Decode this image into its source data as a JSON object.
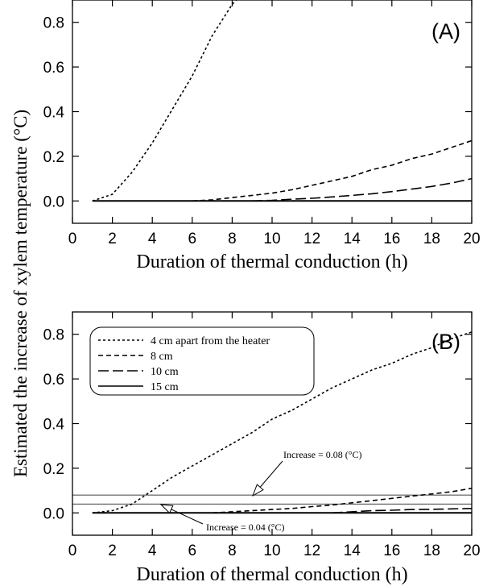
{
  "ylabel": "Estimated the increase of xylem temperature (°C)",
  "chart_data": [
    {
      "type": "line",
      "panel": "(A)",
      "xlabel": "Duration of thermal conduction (h)",
      "xlim": [
        0,
        20
      ],
      "ylim": [
        -0.1,
        0.9
      ],
      "xticks": [
        "0",
        "2",
        "4",
        "6",
        "8",
        "10",
        "12",
        "14",
        "16",
        "18",
        "20"
      ],
      "yticks": [
        "0.0",
        "0.2",
        "0.4",
        "0.6",
        "0.8"
      ],
      "series": [
        {
          "style": "dot",
          "x": [
            1,
            2,
            3,
            4,
            5,
            6,
            7,
            8,
            8.2
          ],
          "y": [
            0,
            0.03,
            0.13,
            0.26,
            0.41,
            0.56,
            0.74,
            0.88,
            0.9
          ]
        },
        {
          "style": "dash",
          "x": [
            6,
            7,
            8,
            9,
            10,
            11,
            12,
            13,
            14,
            15,
            16,
            17,
            18,
            19,
            20
          ],
          "y": [
            0,
            0.005,
            0.015,
            0.025,
            0.035,
            0.05,
            0.07,
            0.09,
            0.11,
            0.14,
            0.16,
            0.19,
            0.21,
            0.24,
            0.27
          ]
        },
        {
          "style": "longdash",
          "x": [
            9,
            10,
            11,
            12,
            13,
            14,
            15,
            16,
            17,
            18,
            19,
            20
          ],
          "y": [
            0,
            0.003,
            0.008,
            0.012,
            0.018,
            0.025,
            0.032,
            0.042,
            0.053,
            0.065,
            0.08,
            0.1
          ]
        },
        {
          "style": "solid",
          "x": [
            1,
            20
          ],
          "y": [
            0,
            0
          ]
        }
      ]
    },
    {
      "type": "line",
      "panel": "(B)",
      "xlabel": "Duration of thermal conduction (h)",
      "xlim": [
        0,
        20
      ],
      "ylim": [
        -0.1,
        0.9
      ],
      "xticks": [
        "0",
        "2",
        "4",
        "6",
        "8",
        "10",
        "12",
        "14",
        "16",
        "18",
        "20"
      ],
      "yticks": [
        "0.0",
        "0.2",
        "0.4",
        "0.6",
        "0.8"
      ],
      "legend": {
        "placement": "top-left",
        "entries": [
          {
            "label": "4 cm apart from the heater",
            "style": "dot"
          },
          {
            "label": "8 cm",
            "style": "dash"
          },
          {
            "label": "10 cm",
            "style": "longdash"
          },
          {
            "label": "15 cm",
            "style": "solid"
          }
        ]
      },
      "series": [
        {
          "style": "dot",
          "x": [
            1,
            2,
            3,
            4,
            5,
            6,
            7,
            8,
            9,
            10,
            11,
            12,
            13,
            14,
            15,
            16,
            17,
            18,
            19,
            20
          ],
          "y": [
            0,
            0.01,
            0.04,
            0.1,
            0.16,
            0.21,
            0.26,
            0.31,
            0.36,
            0.42,
            0.46,
            0.51,
            0.56,
            0.6,
            0.64,
            0.67,
            0.71,
            0.74,
            0.78,
            0.81
          ]
        },
        {
          "style": "dash",
          "x": [
            7,
            8,
            9,
            10,
            11,
            12,
            13,
            14,
            15,
            16,
            17,
            18,
            19,
            20
          ],
          "y": [
            0,
            0.005,
            0.01,
            0.015,
            0.02,
            0.028,
            0.035,
            0.045,
            0.055,
            0.065,
            0.075,
            0.085,
            0.095,
            0.11
          ]
        },
        {
          "style": "longdash",
          "x": [
            13,
            14,
            15,
            16,
            17,
            18,
            19,
            20
          ],
          "y": [
            0,
            0.005,
            0.01,
            0.012,
            0.015,
            0.016,
            0.018,
            0.02
          ]
        },
        {
          "style": "solid",
          "x": [
            1,
            20
          ],
          "y": [
            0,
            0
          ]
        }
      ],
      "reference_lines": [
        0.08,
        0.04
      ],
      "annotations": [
        {
          "text": "Increase = 0.08 (°C)",
          "target_x": 9,
          "target_y": 0.08
        },
        {
          "text": "Increase = 0.04 (°C)",
          "target_x": 4.4,
          "target_y": 0.04
        }
      ]
    }
  ]
}
